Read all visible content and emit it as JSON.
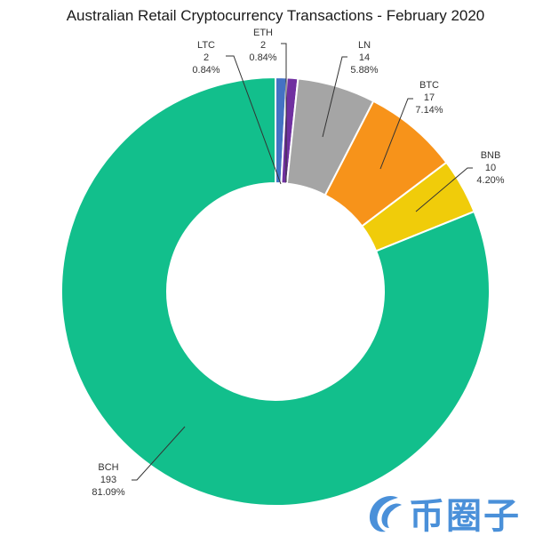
{
  "chart_data": {
    "type": "pie",
    "variant": "donut",
    "title": "Australian Retail Cryptocurrency Transactions - February 2020",
    "start_angle": "12 o'clock, clockwise",
    "categories": [
      "LTC",
      "ETH",
      "LN",
      "BTC",
      "BNB",
      "BCH"
    ],
    "values": [
      2,
      2,
      14,
      17,
      10,
      193
    ],
    "percentages": [
      "0.84%",
      "0.84%",
      "5.88%",
      "7.14%",
      "4.20%",
      "81.09%"
    ],
    "colors": [
      "#4472c4",
      "#7030a0",
      "#a5a5a5",
      "#f7931a",
      "#f0cc0a",
      "#12bf8c"
    ],
    "total": 238,
    "legend": "none (data labels with leader lines)"
  },
  "labels": [
    {
      "name": "LTC",
      "value": "2",
      "pct": "0.84%"
    },
    {
      "name": "ETH",
      "value": "2",
      "pct": "0.84%"
    },
    {
      "name": "LN",
      "value": "14",
      "pct": "5.88%"
    },
    {
      "name": "BTC",
      "value": "17",
      "pct": "7.14%"
    },
    {
      "name": "BNB",
      "value": "10",
      "pct": "4.20%"
    },
    {
      "name": "BCH",
      "value": "193",
      "pct": "81.09%"
    }
  ],
  "watermark": {
    "text": "币圈子"
  }
}
